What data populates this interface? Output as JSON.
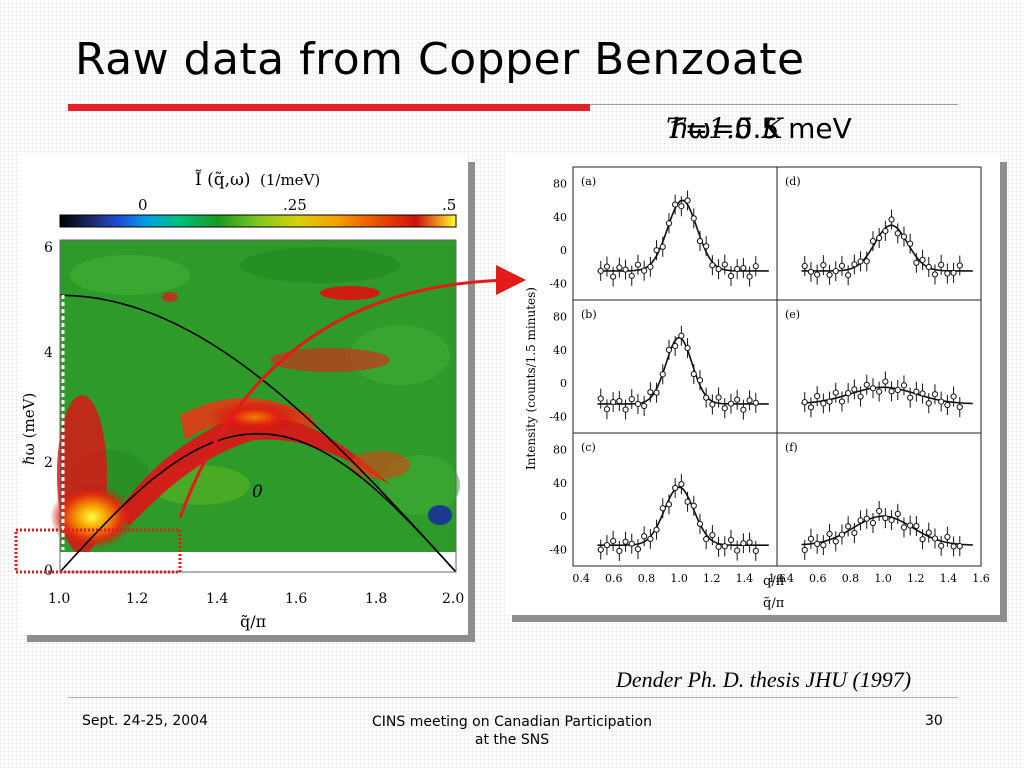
{
  "slide": {
    "title": "Raw data from Copper Benzoate",
    "energy_label": "ℏω=0.5 meV",
    "temperature_label": "T=1.5 K",
    "caption": "Dender Ph. D. thesis JHU (1997)",
    "footer": {
      "date": "Sept. 24-25, 2004",
      "meeting": "CINS meeting on Canadian Participation at the SNS",
      "page": "30"
    }
  },
  "colormap": {
    "title": "Ĩ (q̃,ω)",
    "units": "(1/meV)",
    "ticks": [
      "0",
      ".25",
      ".5"
    ],
    "colors": [
      "#000000",
      "#1a2a6c",
      "#1e4fd8",
      "#00a0e0",
      "#00c080",
      "#1a9a20",
      "#7ec820",
      "#f0e020",
      "#f5a000",
      "#e85000",
      "#d01010",
      "#ffff30"
    ]
  },
  "contour": {
    "xlabel": "q̃/π",
    "ylabel": "ℏω (meV)",
    "x_ticks": [
      "1.0",
      "1.2",
      "1.4",
      "1.6",
      "1.8",
      "2.0"
    ],
    "y_ticks": [
      "0",
      "2",
      "4",
      "6"
    ],
    "annotation": "0",
    "curve_upper_max": 5,
    "curve_lower_max": 2.5
  },
  "scans": {
    "ylabel": "Intensity (counts/1.5 minutes)",
    "y_ticks": [
      "80",
      "40",
      "0",
      "-40"
    ],
    "x_ticks": [
      "0.4",
      "0.6",
      "0.8",
      "1.0",
      "1.2",
      "1.4",
      "1.6"
    ],
    "xlabel": "q̃/π",
    "xlabel2": "q/π",
    "panels": [
      {
        "label": "(a)",
        "peak": 60,
        "width": 0.09,
        "center": 1.02,
        "base": -25
      },
      {
        "label": "(d)",
        "peak": 30,
        "width": 0.1,
        "center": 1.05,
        "base": -25
      },
      {
        "label": "(b)",
        "peak": 55,
        "width": 0.08,
        "center": 1.0,
        "base": -25
      },
      {
        "label": "(e)",
        "peak": -5,
        "width": 0.2,
        "center": 1.0,
        "base": -25
      },
      {
        "label": "(c)",
        "peak": 35,
        "width": 0.09,
        "center": 1.0,
        "base": -35
      },
      {
        "label": "(f)",
        "peak": 0,
        "width": 0.18,
        "center": 1.0,
        "base": -35
      }
    ]
  }
}
